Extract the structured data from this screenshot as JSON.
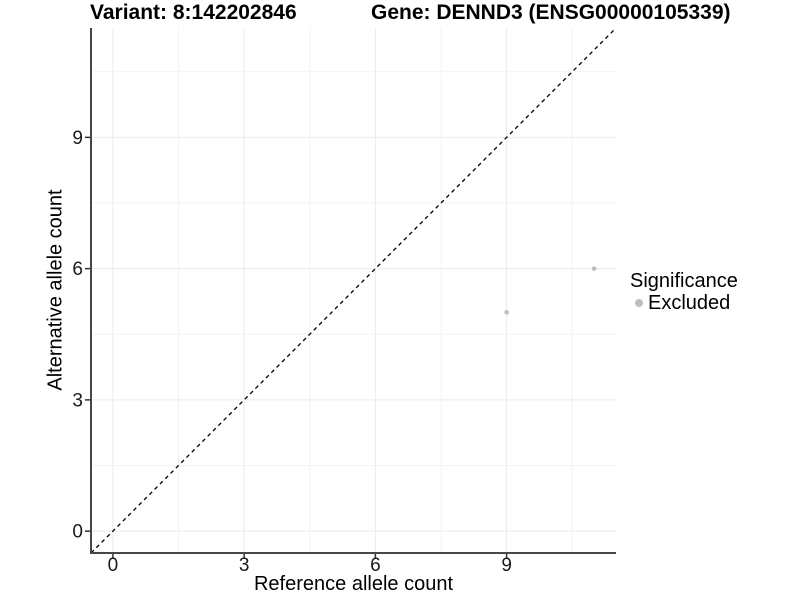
{
  "title": {
    "variant": "Variant: 8:142202846",
    "gene": "Gene: DENND3 (ENSG00000105339)"
  },
  "legend": {
    "title": "Significance",
    "items": [
      {
        "label": "Excluded",
        "color": "#bebebe"
      }
    ]
  },
  "chart_data": {
    "type": "scatter",
    "title": "Variant: 8:142202846    Gene: DENND3 (ENSG00000105339)",
    "xlabel": "Reference allele count",
    "ylabel": "Alternative allele count",
    "xlim": [
      -0.5,
      11.5
    ],
    "ylim": [
      -0.5,
      11.5
    ],
    "x_ticks": [
      0,
      3,
      6,
      9
    ],
    "y_ticks": [
      0,
      3,
      6,
      9
    ],
    "x_minor_ticks": [
      1.5,
      4.5,
      7.5,
      10.5
    ],
    "y_minor_ticks": [
      1.5,
      4.5,
      7.5,
      10.5
    ],
    "grid": true,
    "legend_position": "right",
    "legend_title": "Significance",
    "series": [
      {
        "name": "Excluded",
        "color": "#bebebe",
        "marker": "circle",
        "points": [
          [
            9,
            5
          ],
          [
            11,
            6
          ]
        ]
      }
    ],
    "reference_line": {
      "kind": "identity",
      "slope": 1,
      "intercept": 0,
      "style": "dashed",
      "color": "#000000"
    }
  },
  "style_colors": {
    "axis_line": "#474747",
    "tick_mark": "#333333",
    "grid_major": "#ebebeb",
    "grid_minor": "#f3f3f3",
    "tick_label": "#1a1a1a",
    "panel_background": "#ffffff"
  }
}
